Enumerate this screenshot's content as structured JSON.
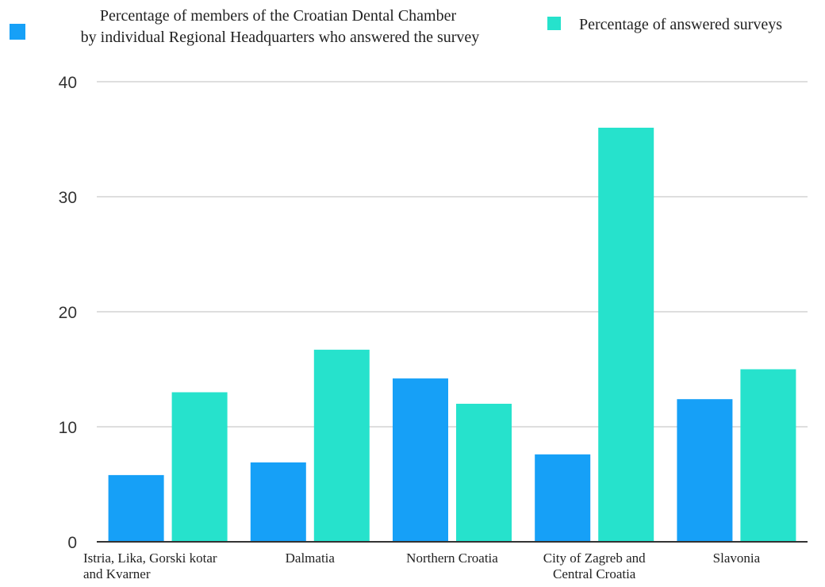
{
  "chart_data": {
    "type": "bar",
    "categories": [
      [
        "Istria, Lika, Gorski kotar",
        "and Kvarner"
      ],
      [
        "Dalmatia"
      ],
      [
        "Northern Croatia"
      ],
      [
        "City of Zagreb and",
        "Central Croatia"
      ],
      [
        "Slavonia"
      ]
    ],
    "series": [
      {
        "name": [
          "Percentage of members of the Croatian Dental Chamber",
          "by individual Regional Headquarters who answered the survey"
        ],
        "color": "#16a0f7",
        "values": [
          5.8,
          6.9,
          14.2,
          7.6,
          12.4
        ]
      },
      {
        "name": [
          "Percentage of answered surveys"
        ],
        "color": "#26e2cc",
        "values": [
          13.0,
          16.7,
          12.0,
          36.0,
          15.0
        ]
      }
    ],
    "yticks": [
      "0",
      "10",
      "20",
      "30",
      "40"
    ],
    "ylim": [
      0,
      40
    ],
    "grid": true,
    "legend_position": "top"
  }
}
